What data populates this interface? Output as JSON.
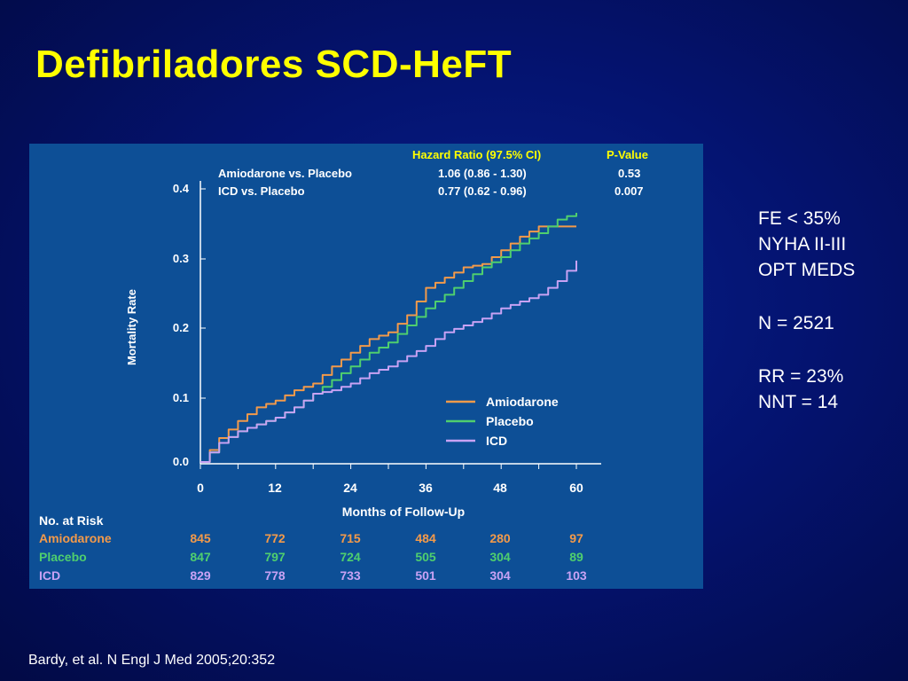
{
  "slide": {
    "title": "Defibriladores SCD-HeFT",
    "notes": [
      "FE < 35%",
      "NYHA II-III",
      "OPT MEDS",
      "",
      "N = 2521",
      "",
      "RR = 23%",
      "NNT = 14"
    ],
    "citation": "Bardy, et al. N Engl J Med 2005;20:352"
  },
  "colors": {
    "panel": "#0d4f96",
    "title": "#ffff00",
    "amiodarone": "#f39a4a",
    "placebo": "#4fcf6e",
    "icd": "#c8a2f4",
    "axis": "#ffffff"
  },
  "chart_data": {
    "type": "line",
    "xlabel": "Months of Follow-Up",
    "ylabel": "Mortality Rate",
    "x_ticks": [
      0,
      12,
      24,
      36,
      48,
      60
    ],
    "y_ticks": [
      "0.0",
      "0.1",
      "0.2",
      "0.3",
      "0.4"
    ],
    "xlim": [
      0,
      60
    ],
    "ylim": [
      0,
      0.4
    ],
    "grid": false,
    "legend_position": "lower-right",
    "stats_table": {
      "headers": [
        "Hazard Ratio (97.5% CI)",
        "P-Value"
      ],
      "rows": [
        {
          "label": "Amiodarone vs. Placebo",
          "hr": "1.06 (0.86 - 1.30)",
          "p": "0.53"
        },
        {
          "label": "ICD vs. Placebo",
          "hr": "0.77 (0.62 - 0.96)",
          "p": "0.007"
        }
      ]
    },
    "series": [
      {
        "name": "Amiodarone",
        "color": "#f39a4a",
        "x": [
          0,
          3,
          6,
          9,
          12,
          15,
          18,
          21,
          24,
          27,
          30,
          33,
          36,
          39,
          42,
          45,
          48,
          51,
          54,
          57,
          60
        ],
        "y": [
          0,
          0.035,
          0.06,
          0.08,
          0.09,
          0.105,
          0.115,
          0.14,
          0.16,
          0.18,
          0.19,
          0.215,
          0.255,
          0.27,
          0.285,
          0.29,
          0.31,
          0.33,
          0.345,
          0.345,
          0.345
        ]
      },
      {
        "name": "Placebo",
        "color": "#4fcf6e",
        "x": [
          0,
          3,
          6,
          9,
          12,
          15,
          18,
          21,
          24,
          27,
          30,
          33,
          36,
          39,
          42,
          45,
          48,
          51,
          54,
          57,
          60
        ],
        "y": [
          0,
          0.028,
          0.045,
          0.055,
          0.065,
          0.08,
          0.1,
          0.12,
          0.14,
          0.16,
          0.175,
          0.2,
          0.225,
          0.245,
          0.265,
          0.285,
          0.3,
          0.32,
          0.335,
          0.355,
          0.365
        ]
      },
      {
        "name": "ICD",
        "color": "#c8a2f4",
        "x": [
          0,
          3,
          6,
          9,
          12,
          15,
          18,
          21,
          24,
          27,
          30,
          33,
          36,
          39,
          42,
          45,
          48,
          51,
          54,
          57,
          60
        ],
        "y": [
          0,
          0.028,
          0.045,
          0.055,
          0.065,
          0.08,
          0.1,
          0.105,
          0.115,
          0.13,
          0.14,
          0.155,
          0.17,
          0.19,
          0.2,
          0.21,
          0.225,
          0.235,
          0.245,
          0.265,
          0.295
        ]
      }
    ],
    "risk_table": {
      "title": "No. at Risk",
      "rows": [
        {
          "name": "Amiodarone",
          "values": [
            845,
            772,
            715,
            484,
            280,
            97
          ]
        },
        {
          "name": "Placebo",
          "values": [
            847,
            797,
            724,
            505,
            304,
            89
          ]
        },
        {
          "name": "ICD",
          "values": [
            829,
            778,
            733,
            501,
            304,
            103
          ]
        }
      ]
    }
  }
}
